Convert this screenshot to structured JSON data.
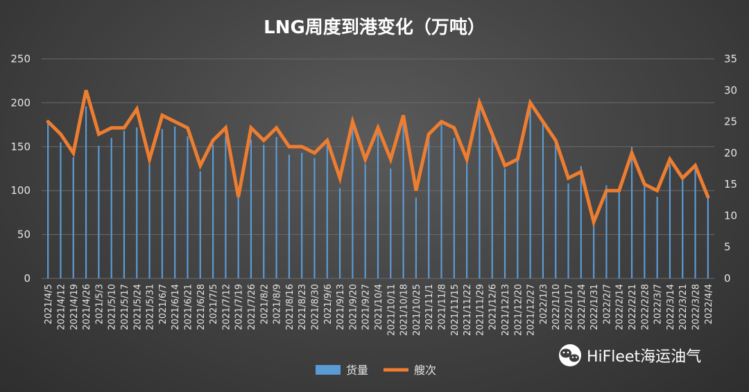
{
  "chart_data": {
    "type": "bar",
    "title": "LNG周度到港变化（万吨）",
    "categories": [
      "2021/4/5",
      "2021/4/12",
      "2021/4/19",
      "2021/4/26",
      "2021/5/3",
      "2021/5/10",
      "2021/5/17",
      "2021/5/24",
      "2021/5/31",
      "2021/6/7",
      "2021/6/14",
      "2021/6/21",
      "2021/6/28",
      "2021/7/5",
      "2021/7/12",
      "2021/7/19",
      "2021/7/26",
      "2021/8/2",
      "2021/8/9",
      "2021/8/16",
      "2021/8/23",
      "2021/8/30",
      "2021/9/6",
      "2021/9/13",
      "2021/9/20",
      "2021/9/27",
      "2021/10/4",
      "2021/10/11",
      "2021/10/18",
      "2021/10/25",
      "2021/11/1",
      "2021/11/8",
      "2021/11/15",
      "2021/11/22",
      "2021/11/29",
      "2021/12/6",
      "2021/12/13",
      "2021/12/20",
      "2021/12/27",
      "2022/1/3",
      "2022/1/10",
      "2022/1/17",
      "2022/1/24",
      "2022/1/31",
      "2022/2/7",
      "2022/2/14",
      "2022/2/21",
      "2022/2/28",
      "2022/3/7",
      "2022/3/14",
      "2022/3/21",
      "2022/3/28",
      "2022/4/4"
    ],
    "x_tick_labels": [
      "2021/4/5",
      "2021/4/12",
      "2021/4/19",
      "2021/4/26",
      "2021/5/3",
      "2021/5/10",
      "2021/5/17",
      "2021/5/24",
      "2021/5/31",
      "2021/6/7",
      "2021/6/14",
      "2021/6/21",
      "2021/6/28",
      "2021/7/5",
      "2021/7/12",
      "2021/7/19",
      "2021/7/26",
      "2021/8/2",
      "2021/8/9",
      "2021/8/16",
      "2021/8/23",
      "2021/8/30",
      "2021/9/6",
      "2021/9/13",
      "2021/9/20",
      "2021/9/27",
      "2021/10/4",
      "2021/10/11",
      "2021/10/18",
      "2021/10/25",
      "2021/11/1",
      "2021/11/8",
      "2021/11/15",
      "2021/11/22",
      "2021/11/29",
      "2021/12/6",
      "2021/12/13",
      "2021/12/20",
      "2021/12/27",
      "2022/1/3",
      "2022/1/10",
      "2022/1/17",
      "2022/1/24",
      "2022/1/31",
      "2022/2/7",
      "2022/2/14",
      "2022/2/21",
      "2022/2/28",
      "2022/3/7",
      "2022/3/14",
      "2022/3/21",
      "2022/3/28",
      "2022/4/4"
    ],
    "series": [
      {
        "name": "货量",
        "type": "bar",
        "axis": "left",
        "color": "#5b9bd5",
        "values": [
          180,
          155,
          138,
          196,
          151,
          160,
          168,
          172,
          130,
          170,
          173,
          162,
          122,
          152,
          162,
          96,
          158,
          152,
          161,
          141,
          143,
          137,
          152,
          103,
          172,
          130,
          167,
          125,
          180,
          92,
          162,
          176,
          160,
          132,
          200,
          168,
          125,
          136,
          196,
          178,
          155,
          108,
          128,
          62,
          106,
          98,
          150,
          105,
          93,
          130,
          112,
          126,
          93
        ]
      },
      {
        "name": "艘次",
        "type": "line",
        "axis": "right",
        "color": "#ed7d31",
        "values": [
          25,
          23,
          20,
          30,
          23,
          24,
          24,
          27,
          19,
          26,
          25,
          24,
          18,
          22,
          24,
          13,
          24,
          22,
          24,
          21,
          21,
          20,
          22,
          16,
          25,
          19,
          24,
          19,
          26,
          14,
          23,
          25,
          24,
          19,
          28,
          23,
          18,
          19,
          28,
          25,
          22,
          16,
          17,
          9,
          14,
          14,
          20,
          15,
          14,
          19,
          16,
          18,
          13
        ]
      }
    ],
    "y_left": {
      "ylim": [
        0,
        250
      ],
      "ticks": [
        "0",
        "50",
        "100",
        "150",
        "200",
        "250"
      ]
    },
    "y_right": {
      "ylim": [
        0,
        35
      ],
      "ticks": [
        "0",
        "5",
        "10",
        "15",
        "20",
        "25",
        "30",
        "35"
      ]
    },
    "grid": true,
    "legend_position": "bottom-center"
  },
  "colors": {
    "bar": "#5b9bd5",
    "line": "#ed7d31",
    "grid": "#6a6a6a",
    "text": "#e6e6e6"
  },
  "watermark": {
    "icon": "wechat-icon",
    "text": "HiFleet海运油气"
  }
}
